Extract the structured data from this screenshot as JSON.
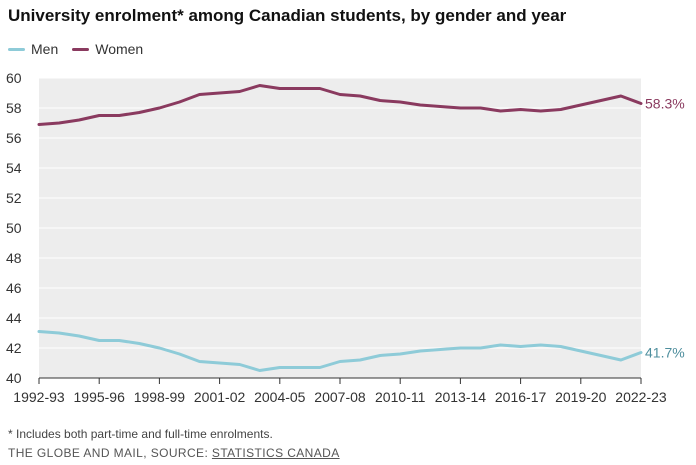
{
  "header": {
    "title": "University enrolment* among Canadian students, by gender and year"
  },
  "footer": {
    "footnote": "* Includes both part-time and full-time enrolments.",
    "credit_prefix": "THE GLOBE AND MAIL, SOURCE: ",
    "source_link": "STATISTICS CANADA"
  },
  "colors": {
    "men": "#8ecbd8",
    "women": "#8a3a5f",
    "men_label": "#4e8e9d",
    "plot_bg": "#ededed"
  },
  "chart_data": {
    "type": "line",
    "x": [
      "1992-93",
      "1993-94",
      "1994-95",
      "1995-96",
      "1996-97",
      "1997-98",
      "1998-99",
      "1999-00",
      "2000-01",
      "2001-02",
      "2002-03",
      "2003-04",
      "2004-05",
      "2005-06",
      "2006-07",
      "2007-08",
      "2008-09",
      "2009-10",
      "2010-11",
      "2011-12",
      "2012-13",
      "2013-14",
      "2014-15",
      "2015-16",
      "2016-17",
      "2017-18",
      "2018-19",
      "2019-20",
      "2020-21",
      "2021-22",
      "2022-23"
    ],
    "xticks": [
      "1992-93",
      "1995-96",
      "1998-99",
      "2001-02",
      "2004-05",
      "2007-08",
      "2010-11",
      "2013-14",
      "2016-17",
      "2019-20",
      "2022-23"
    ],
    "yticks": [
      40,
      42,
      44,
      46,
      48,
      50,
      52,
      54,
      56,
      58,
      60
    ],
    "ylim": [
      40,
      60
    ],
    "grid": true,
    "legend_position": "top-left",
    "series": [
      {
        "name": "Men",
        "color_key": "men",
        "end_label": "41.7%",
        "values": [
          43.1,
          43.0,
          42.8,
          42.5,
          42.5,
          42.3,
          42.0,
          41.6,
          41.1,
          41.0,
          40.9,
          40.5,
          40.7,
          40.7,
          40.7,
          41.1,
          41.2,
          41.5,
          41.6,
          41.8,
          41.9,
          42.0,
          42.0,
          42.2,
          42.1,
          42.2,
          42.1,
          41.8,
          41.5,
          41.2,
          41.7
        ]
      },
      {
        "name": "Women",
        "color_key": "women",
        "end_label": "58.3%",
        "values": [
          56.9,
          57.0,
          57.2,
          57.5,
          57.5,
          57.7,
          58.0,
          58.4,
          58.9,
          59.0,
          59.1,
          59.5,
          59.3,
          59.3,
          59.3,
          58.9,
          58.8,
          58.5,
          58.4,
          58.2,
          58.1,
          58.0,
          58.0,
          57.8,
          57.9,
          57.8,
          57.9,
          58.2,
          58.5,
          58.8,
          58.3
        ]
      }
    ]
  }
}
